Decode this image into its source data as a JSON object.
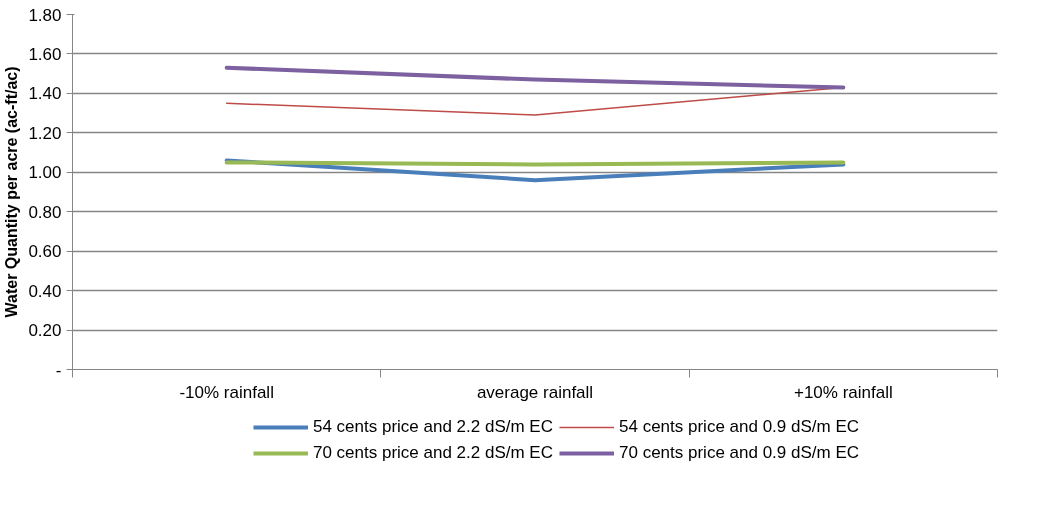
{
  "chart_data": {
    "type": "line",
    "ylabel": "Water Quantity per acre (ac-ft/ac)",
    "categories": [
      "-10% rainfall",
      "average rainfall",
      "+10% rainfall"
    ],
    "series": [
      {
        "name": "54 cents price and 2.2 dS/m EC",
        "color": "#4a7ebb",
        "values": [
          1.06,
          0.96,
          1.04
        ]
      },
      {
        "name": "54 cents price and 0.9 dS/m EC",
        "color": "#be4b48",
        "values": [
          1.35,
          1.29,
          1.43
        ]
      },
      {
        "name": "70 cents price and 2.2 dS/m EC",
        "color": "#98b954",
        "values": [
          1.05,
          1.04,
          1.05
        ]
      },
      {
        "name": "70 cents price and 0.9 dS/m EC",
        "color": "#7d60a0",
        "values": [
          1.53,
          1.47,
          1.43
        ]
      }
    ],
    "ylim": [
      0,
      1.8
    ],
    "yticks": [
      {
        "value": 0,
        "label": "-"
      },
      {
        "value": 0.2,
        "label": "0.20"
      },
      {
        "value": 0.4,
        "label": "0.40"
      },
      {
        "value": 0.6,
        "label": "0.60"
      },
      {
        "value": 0.8,
        "label": "0.80"
      },
      {
        "value": 1.0,
        "label": "1.00"
      },
      {
        "value": 1.2,
        "label": "1.20"
      },
      {
        "value": 1.4,
        "label": "1.40"
      },
      {
        "value": 1.6,
        "label": "1.60"
      },
      {
        "value": 1.8,
        "label": "1.80"
      }
    ],
    "grid": "y",
    "legend": "bottom",
    "marker": "none",
    "line_style": "solid"
  }
}
